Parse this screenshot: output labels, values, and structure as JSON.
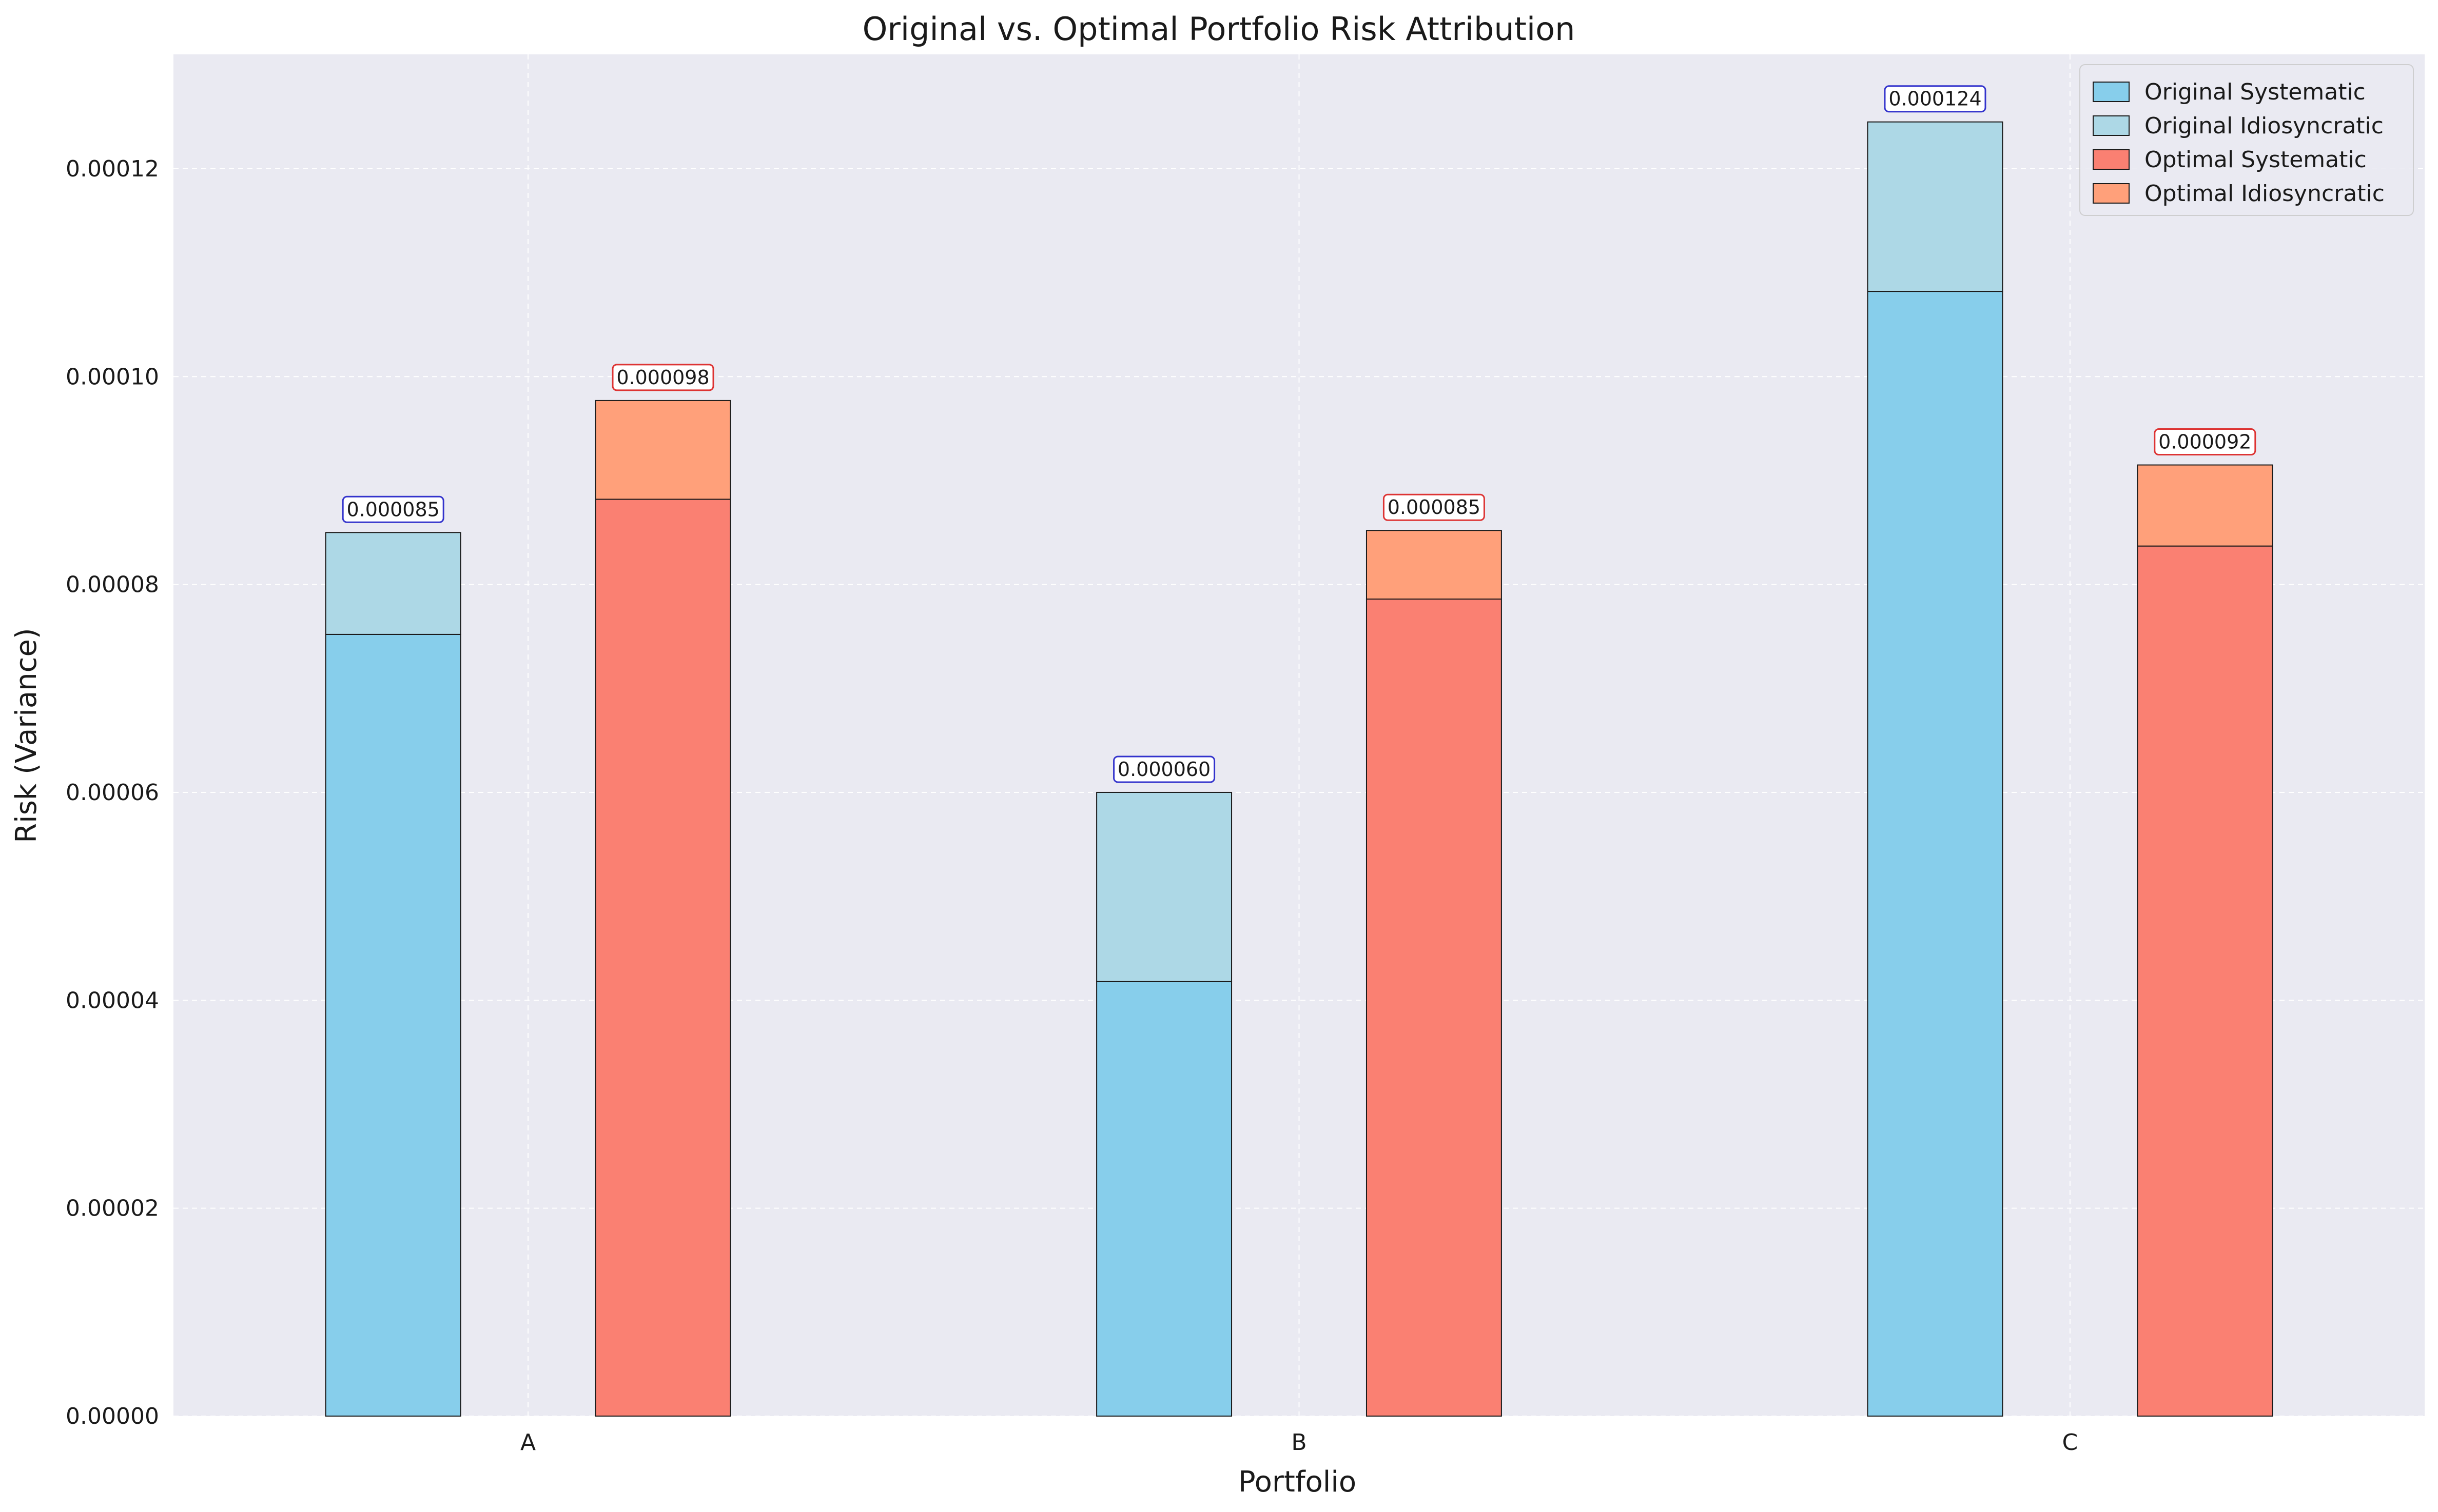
{
  "chart_data": {
    "type": "bar",
    "title": "Original vs. Optimal Portfolio Risk Attribution",
    "xlabel": "Portfolio",
    "ylabel": "Risk (Variance)",
    "categories": [
      "A",
      "B",
      "C"
    ],
    "ylim": [
      0,
      0.000131
    ],
    "yticks": [
      "0.00000",
      "0.00002",
      "0.00004",
      "0.00006",
      "0.00008",
      "0.00010",
      "0.00012"
    ],
    "grid": true,
    "legend_position": "top-right",
    "groups": [
      {
        "name": "Original",
        "total_labels": [
          "0.000085",
          "0.000060",
          "0.000124"
        ],
        "label_border_color": "#3333cc",
        "segments": [
          {
            "name": "Original Systematic",
            "color": "#87ceeb",
            "values": [
              7.52e-05,
              4.18e-05,
              0.0001082
            ]
          },
          {
            "name": "Original Idiosyncratic",
            "color": "#add8e6",
            "values": [
              9.8e-06,
              1.82e-05,
              1.63e-05
            ]
          }
        ]
      },
      {
        "name": "Optimal",
        "total_labels": [
          "0.000098",
          "0.000085",
          "0.000092"
        ],
        "label_border_color": "#dd3333",
        "segments": [
          {
            "name": "Optimal Systematic",
            "color": "#fa8072",
            "values": [
              8.82e-05,
              7.86e-05,
              8.37e-05
            ]
          },
          {
            "name": "Optimal Idiosyncratic",
            "color": "#ffa07a",
            "values": [
              9.5e-06,
              6.6e-06,
              7.8e-06
            ]
          }
        ]
      }
    ],
    "colors": {
      "plot_background": "#eaeaf2",
      "grid": "#ffffff",
      "bar_edge": "#1a1a1a"
    }
  }
}
